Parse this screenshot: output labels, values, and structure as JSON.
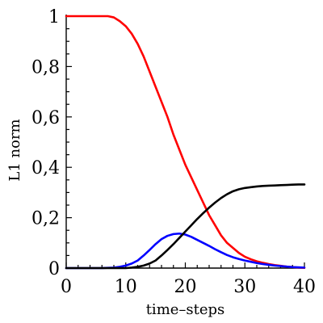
{
  "chart_data": {
    "type": "line",
    "title": "",
    "xlabel": "time–steps",
    "ylabel": "L1 norm",
    "xlim": [
      0,
      40
    ],
    "ylim": [
      0,
      1
    ],
    "grid": false,
    "x_ticks": [
      0,
      10,
      20,
      30,
      40
    ],
    "x_tick_labels": [
      "0",
      "10",
      "20",
      "30",
      "40"
    ],
    "x_minor_ticks": [
      2,
      4,
      6,
      8,
      12,
      14,
      16,
      18,
      22,
      24,
      26,
      28,
      32,
      34,
      36,
      38
    ],
    "y_ticks": [
      0,
      0.2,
      0.4,
      0.6,
      0.8,
      1
    ],
    "y_tick_labels": [
      "0",
      "0,2",
      "0,4",
      "0,6",
      "0,8",
      "1"
    ],
    "y_minor_ticks": [
      0.05,
      0.1,
      0.15,
      0.25,
      0.3,
      0.35,
      0.45,
      0.5,
      0.55,
      0.65,
      0.7,
      0.75,
      0.85,
      0.9,
      0.95
    ],
    "series": [
      {
        "color": "#ff0000",
        "x": [
          0,
          4,
          7,
          8,
          9,
          10,
          11,
          12,
          13,
          14,
          15,
          16,
          17,
          18,
          19,
          20,
          21,
          22,
          23,
          24,
          25,
          26,
          27,
          28,
          29,
          30,
          31,
          32,
          33,
          34,
          35,
          36,
          37,
          38,
          39,
          40
        ],
        "y": [
          1,
          1,
          1,
          0.995,
          0.98,
          0.96,
          0.93,
          0.89,
          0.84,
          0.78,
          0.72,
          0.66,
          0.6,
          0.53,
          0.47,
          0.41,
          0.36,
          0.31,
          0.26,
          0.21,
          0.17,
          0.13,
          0.1,
          0.08,
          0.06,
          0.045,
          0.035,
          0.027,
          0.021,
          0.016,
          0.012,
          0.009,
          0.006,
          0.004,
          0.002,
          0.001
        ]
      },
      {
        "color": "#0000ff",
        "x": [
          0,
          6,
          8,
          9,
          10,
          11,
          12,
          13,
          14,
          15,
          16,
          17,
          18,
          19,
          20,
          21,
          22,
          23,
          24,
          25,
          26,
          27,
          28,
          29,
          30,
          31,
          32,
          33,
          34,
          35,
          36,
          37,
          38,
          39,
          40
        ],
        "y": [
          0,
          0,
          0.002,
          0.005,
          0.01,
          0.018,
          0.03,
          0.05,
          0.072,
          0.095,
          0.115,
          0.128,
          0.135,
          0.137,
          0.133,
          0.124,
          0.112,
          0.1,
          0.088,
          0.075,
          0.063,
          0.052,
          0.043,
          0.036,
          0.03,
          0.025,
          0.02,
          0.016,
          0.013,
          0.01,
          0.008,
          0.006,
          0.004,
          0.003,
          0.002
        ]
      },
      {
        "color": "#000000",
        "x": [
          0,
          10,
          11,
          12,
          13,
          14,
          15,
          16,
          17,
          18,
          19,
          20,
          21,
          22,
          23,
          24,
          25,
          26,
          27,
          28,
          29,
          30,
          31,
          32,
          33,
          34,
          35,
          36,
          37,
          38,
          39,
          40
        ],
        "y": [
          0,
          0,
          0.002,
          0.005,
          0.01,
          0.018,
          0.03,
          0.05,
          0.072,
          0.095,
          0.12,
          0.145,
          0.17,
          0.195,
          0.218,
          0.24,
          0.26,
          0.278,
          0.293,
          0.305,
          0.313,
          0.318,
          0.321,
          0.324,
          0.326,
          0.327,
          0.328,
          0.329,
          0.33,
          0.331,
          0.332,
          0.332
        ]
      }
    ]
  }
}
